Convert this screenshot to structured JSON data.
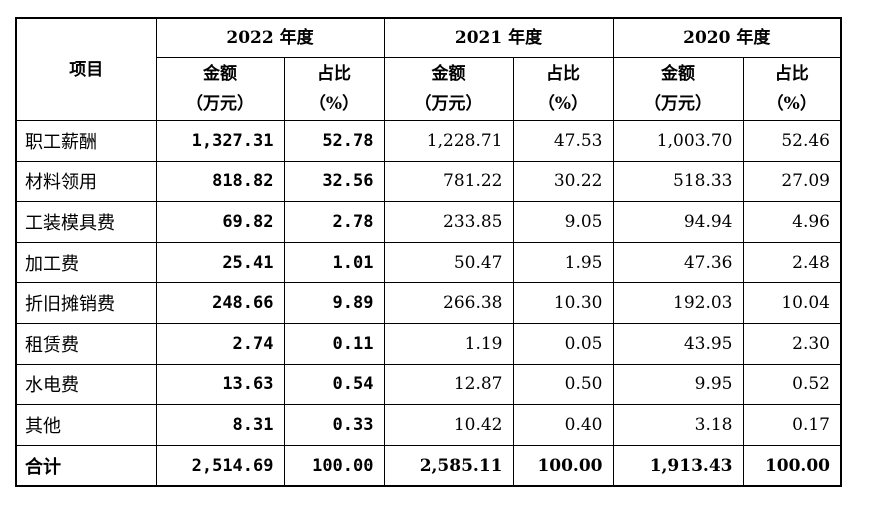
{
  "table": {
    "header": {
      "item": "项目",
      "years": [
        {
          "label": "2022 年度",
          "amount": "金额",
          "amount_unit": "（万元）",
          "share": "占比",
          "share_unit": "（%）"
        },
        {
          "label": "2021 年度",
          "amount": "金额",
          "amount_unit": "（万元）",
          "share": "占比",
          "share_unit": "（%）"
        },
        {
          "label": "2020 年度",
          "amount": "金额",
          "amount_unit": "（万元）",
          "share": "占比",
          "share_unit": "（%）"
        }
      ]
    },
    "rows": [
      [
        "职工薪酬",
        "1,327.31",
        "52.78",
        "1,228.71",
        "47.53",
        "1,003.70",
        "52.46"
      ],
      [
        "材料领用",
        "818.82",
        "32.56",
        "781.22",
        "30.22",
        "518.33",
        "27.09"
      ],
      [
        "工装模具费",
        "69.82",
        "2.78",
        "233.85",
        "9.05",
        "94.94",
        "4.96"
      ],
      [
        "加工费",
        "25.41",
        "1.01",
        "50.47",
        "1.95",
        "47.36",
        "2.48"
      ],
      [
        "折旧摊销费",
        "248.66",
        "9.89",
        "266.38",
        "10.30",
        "192.03",
        "10.04"
      ],
      [
        "租赁费",
        "2.74",
        "0.11",
        "1.19",
        "0.05",
        "43.95",
        "2.30"
      ],
      [
        "水电费",
        "13.63",
        "0.54",
        "12.87",
        "0.50",
        "9.95",
        "0.52"
      ],
      [
        "其他",
        "8.31",
        "0.33",
        "10.42",
        "0.40",
        "3.18",
        "0.17"
      ],
      [
        "合计",
        "2,514.69",
        "100.00",
        "2,585.11",
        "100.00",
        "1,913.43",
        "100.00"
      ]
    ]
  }
}
